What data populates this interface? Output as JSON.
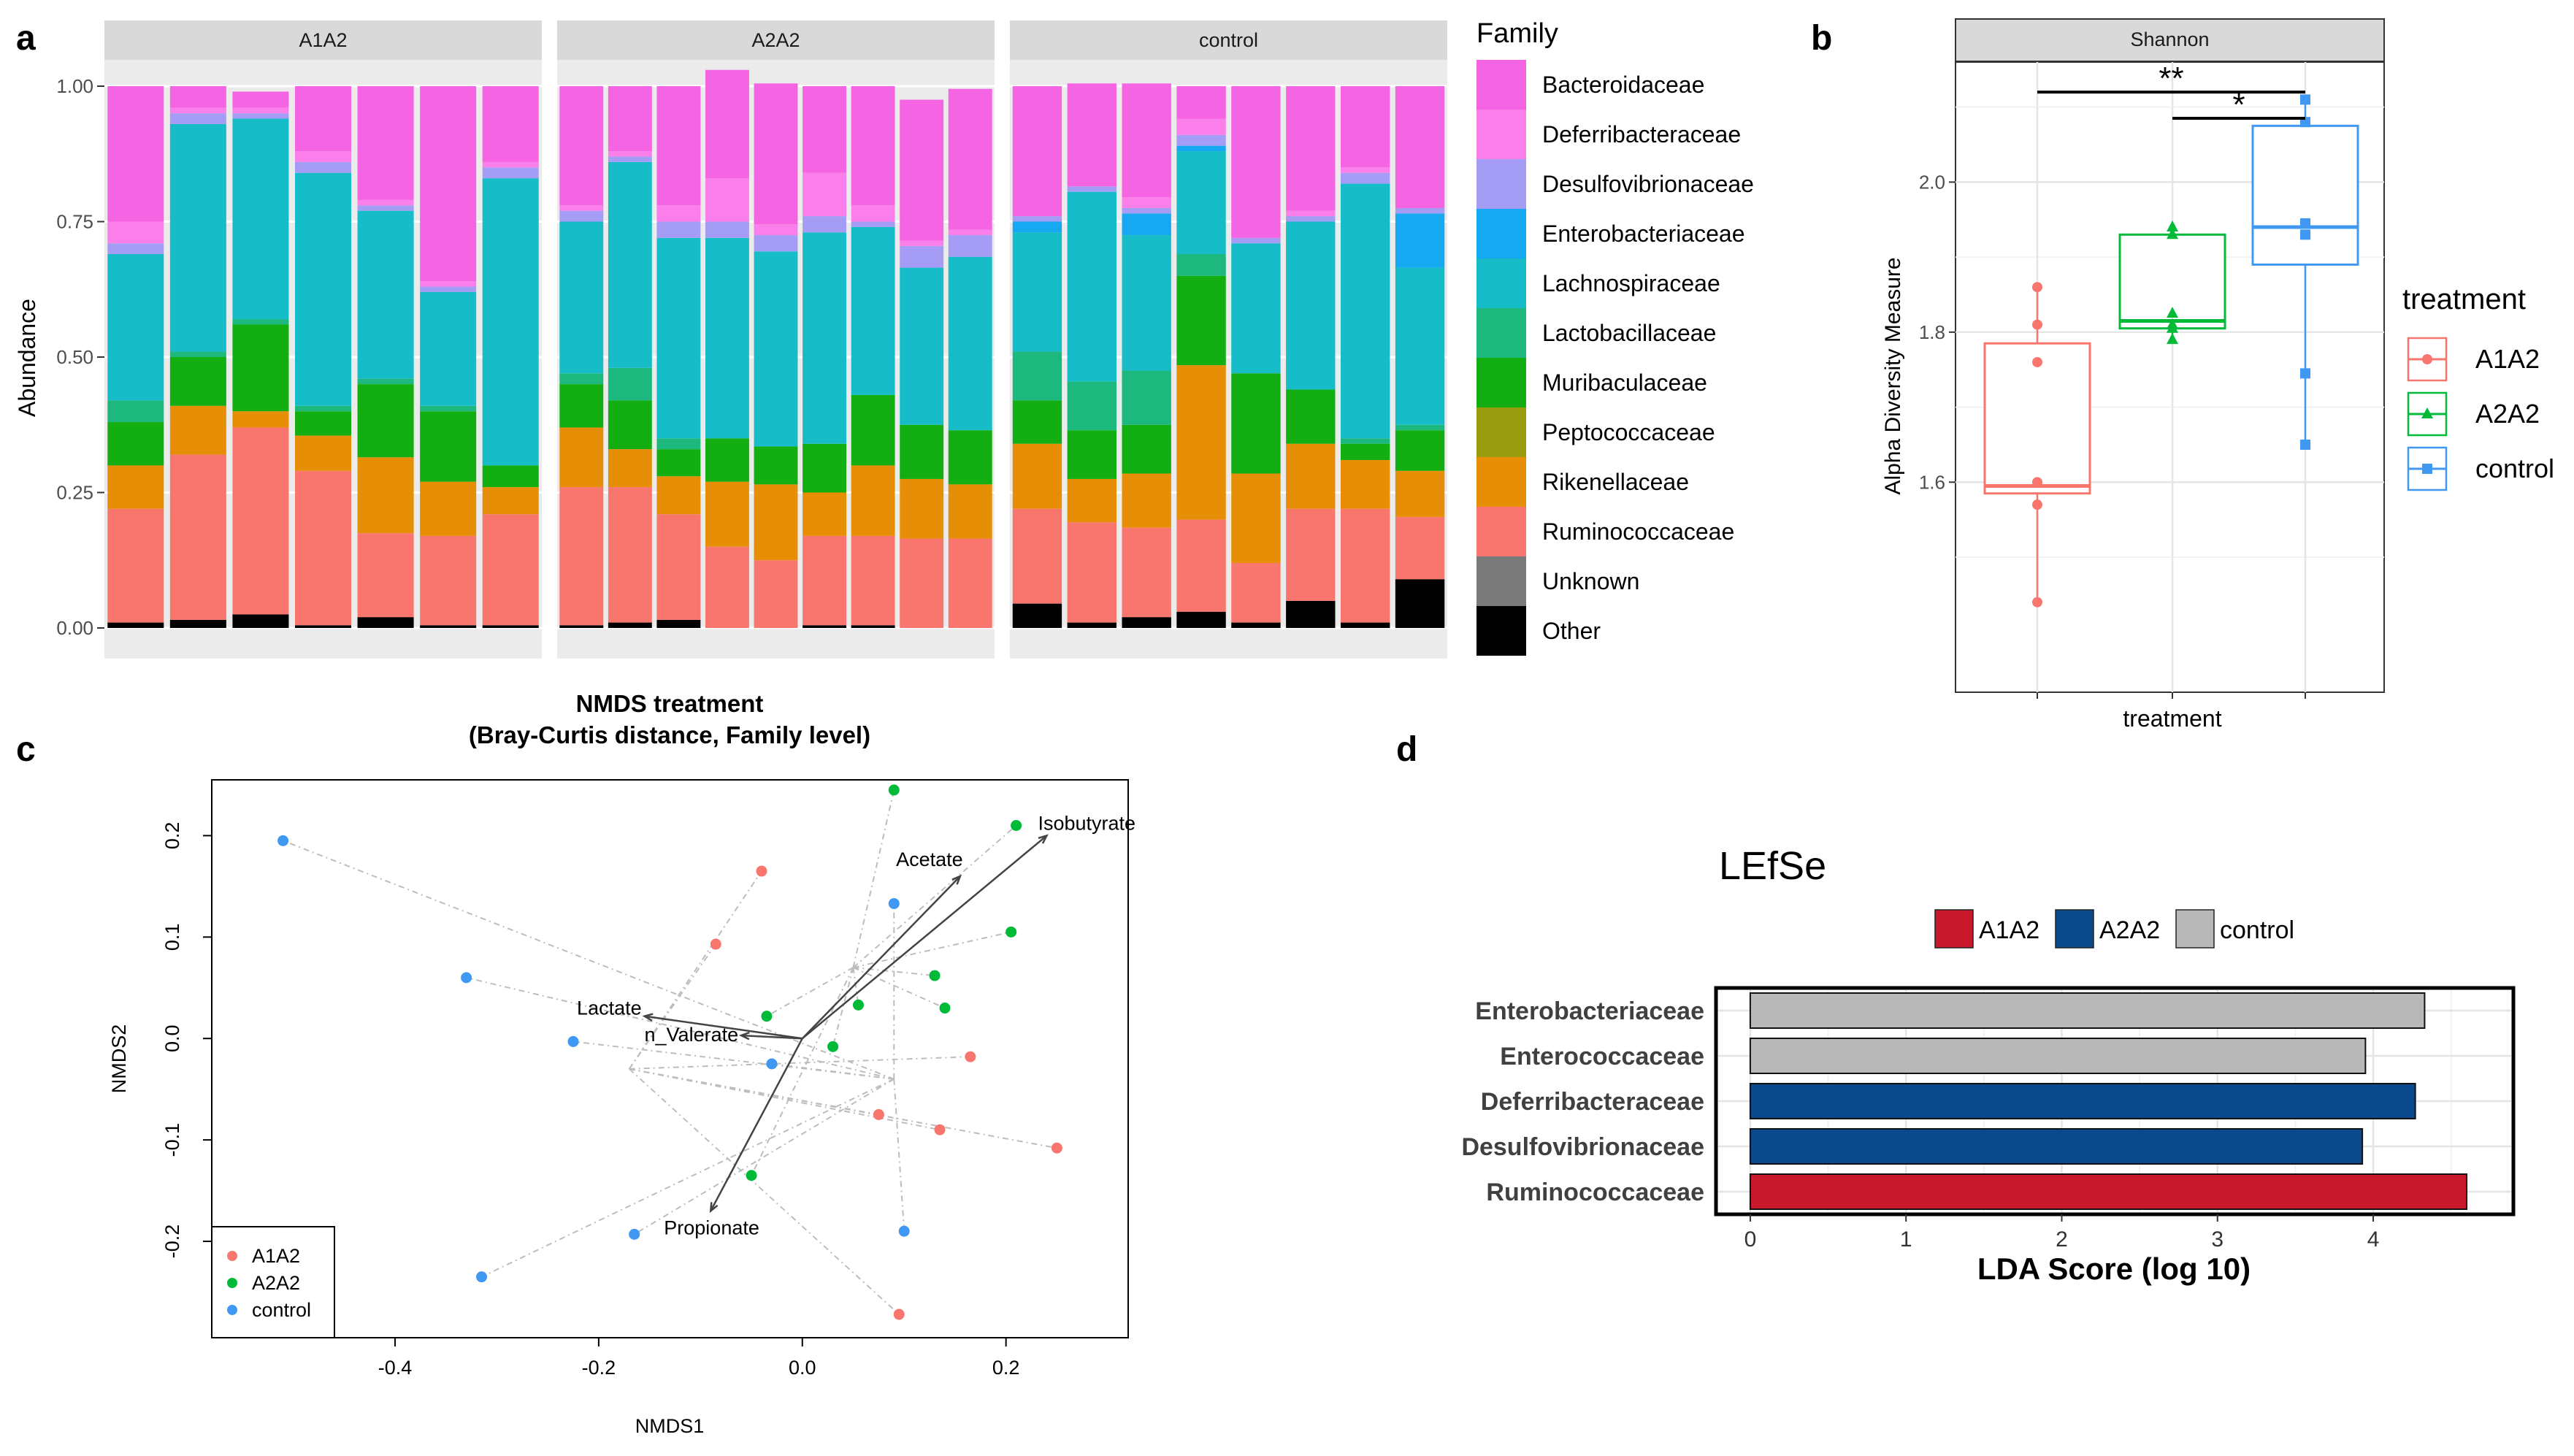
{
  "colors": {
    "Bacteroidaceae": "#F564E3",
    "Deferribacteraceae": "#FB7FEA",
    "Desulfovibrionaceae": "#A59CF5",
    "Enterobacteriaceae": "#16A9F2",
    "Lachnospiraceae": "#16BDC8",
    "Lactobacillaceae": "#1DB87E",
    "Muribaculaceae": "#12AE12",
    "Peptococcaceae": "#9A9D12",
    "Rikenellaceae": "#E78E07",
    "Ruminococcaceae": "#F8766D",
    "Unknown": "#7A7A7A",
    "Other": "#000000",
    "A1A2": "#F8766D",
    "A2A2": "#00BA38",
    "control": "#3F98F2",
    "lefse_A1A2": "#C8192C",
    "lefse_A2A2": "#0A4A8C",
    "lefse_control": "#B8B8B8"
  },
  "panel_labels": {
    "a": "a",
    "b": "b",
    "c": "c",
    "d": "d"
  },
  "chart_data": [
    {
      "id": "a",
      "type": "bar",
      "stacked": true,
      "ylabel": "Abundance",
      "ylim": [
        0,
        1
      ],
      "yticks": [
        0,
        0.25,
        0.5,
        0.75,
        1
      ],
      "ytick_labels": [
        "0.00",
        "0.25",
        "0.50",
        "0.75",
        "1.00"
      ],
      "legend_title": "Family",
      "legend_position": "right",
      "families": [
        "Other",
        "Unknown",
        "Ruminococcaceae",
        "Rikenellaceae",
        "Peptococcaceae",
        "Muribaculaceae",
        "Lactobacillaceae",
        "Lachnospiraceae",
        "Enterobacteriaceae",
        "Desulfovibrionaceae",
        "Deferribacteraceae",
        "Bacteroidaceae"
      ],
      "legend_order": [
        "Bacteroidaceae",
        "Deferribacteraceae",
        "Desulfovibrionaceae",
        "Enterobacteriaceae",
        "Lachnospiraceae",
        "Lactobacillaceae",
        "Muribaculaceae",
        "Peptococcaceae",
        "Rikenellaceae",
        "Ruminococcaceae",
        "Unknown",
        "Other"
      ],
      "facets": [
        {
          "name": "A1A2",
          "samples": [
            [
              0.01,
              0.0,
              0.21,
              0.08,
              0.0,
              0.08,
              0.04,
              0.27,
              0.0,
              0.02,
              0.04,
              0.25
            ],
            [
              0.015,
              0.0,
              0.305,
              0.09,
              0.0,
              0.09,
              0.01,
              0.42,
              0.0,
              0.02,
              0.01,
              0.04
            ],
            [
              0.025,
              0.0,
              0.345,
              0.03,
              0.0,
              0.16,
              0.01,
              0.37,
              0.0,
              0.01,
              0.01,
              0.03
            ],
            [
              0.005,
              0.0,
              0.285,
              0.065,
              0.0,
              0.045,
              0.01,
              0.43,
              0.0,
              0.02,
              0.02,
              0.12
            ],
            [
              0.02,
              0.0,
              0.155,
              0.14,
              0.0,
              0.135,
              0.01,
              0.31,
              0.0,
              0.01,
              0.01,
              0.21
            ],
            [
              0.005,
              0.0,
              0.165,
              0.1,
              0.0,
              0.13,
              0.01,
              0.21,
              0.0,
              0.01,
              0.01,
              0.36
            ],
            [
              0.005,
              0.0,
              0.205,
              0.05,
              0.0,
              0.04,
              0.0,
              0.53,
              0.0,
              0.02,
              0.01,
              0.14
            ]
          ]
        },
        {
          "name": "A2A2",
          "samples": [
            [
              0.005,
              0.0,
              0.255,
              0.11,
              0.0,
              0.08,
              0.02,
              0.28,
              0.0,
              0.02,
              0.01,
              0.22
            ],
            [
              0.01,
              0.0,
              0.25,
              0.07,
              0.0,
              0.09,
              0.06,
              0.38,
              0.0,
              0.01,
              0.01,
              0.12
            ],
            [
              0.015,
              0.0,
              0.195,
              0.07,
              0.0,
              0.05,
              0.02,
              0.37,
              0.0,
              0.03,
              0.03,
              0.22
            ],
            [
              0.0,
              0.0,
              0.15,
              0.12,
              0.0,
              0.08,
              0.0,
              0.37,
              0.0,
              0.03,
              0.08,
              0.2
            ],
            [
              0.0,
              0.0,
              0.125,
              0.14,
              0.0,
              0.07,
              0.0,
              0.36,
              0.0,
              0.03,
              0.02,
              0.26
            ],
            [
              0.005,
              0.0,
              0.165,
              0.08,
              0.0,
              0.09,
              0.0,
              0.39,
              0.0,
              0.03,
              0.08,
              0.16
            ],
            [
              0.005,
              0.0,
              0.165,
              0.13,
              0.0,
              0.13,
              0.0,
              0.31,
              0.0,
              0.01,
              0.03,
              0.22
            ],
            [
              0.0,
              0.0,
              0.165,
              0.11,
              0.0,
              0.1,
              0.0,
              0.29,
              0.0,
              0.04,
              0.01,
              0.26
            ],
            [
              0.0,
              0.0,
              0.165,
              0.1,
              0.0,
              0.1,
              0.0,
              0.32,
              0.0,
              0.04,
              0.01,
              0.26
            ]
          ]
        },
        {
          "name": "control",
          "samples": [
            [
              0.045,
              0.0,
              0.175,
              0.12,
              0.0,
              0.08,
              0.09,
              0.22,
              0.02,
              0.01,
              0.0,
              0.24
            ],
            [
              0.01,
              0.0,
              0.185,
              0.08,
              0.0,
              0.09,
              0.09,
              0.35,
              0.0,
              0.01,
              0.0,
              0.19
            ],
            [
              0.02,
              0.0,
              0.165,
              0.1,
              0.0,
              0.09,
              0.1,
              0.25,
              0.04,
              0.01,
              0.02,
              0.21
            ],
            [
              0.03,
              0.0,
              0.17,
              0.285,
              0.0,
              0.165,
              0.04,
              0.19,
              0.01,
              0.02,
              0.03,
              0.06
            ],
            [
              0.01,
              0.0,
              0.11,
              0.165,
              0.0,
              0.185,
              0.0,
              0.24,
              0.0,
              0.01,
              0.0,
              0.28
            ],
            [
              0.05,
              0.0,
              0.17,
              0.12,
              0.0,
              0.1,
              0.0,
              0.31,
              0.0,
              0.01,
              0.01,
              0.23
            ],
            [
              0.01,
              0.0,
              0.21,
              0.09,
              0.0,
              0.03,
              0.01,
              0.47,
              0.0,
              0.02,
              0.01,
              0.15
            ],
            [
              0.09,
              0.0,
              0.115,
              0.085,
              0.0,
              0.075,
              0.01,
              0.29,
              0.1,
              0.01,
              0.0,
              0.225
            ]
          ]
        }
      ]
    },
    {
      "id": "b",
      "type": "box",
      "facet_label": "Shannon",
      "ylabel": "Alpha Diversity Measure",
      "xlabel": "treatment",
      "ylim": [
        1.32,
        2.16
      ],
      "yticks": [
        1.6,
        1.8,
        2.0
      ],
      "ytick_labels": [
        "1.6",
        "1.8",
        "2.0"
      ],
      "legend_title": "treatment",
      "legend_position": "right",
      "groups": [
        {
          "name": "A1A2",
          "q1": 1.585,
          "median": 1.595,
          "q3": 1.785,
          "min": 1.44,
          "max": 1.86,
          "points": [
            1.44,
            1.57,
            1.6,
            1.76,
            1.81,
            1.86
          ]
        },
        {
          "name": "A2A2",
          "q1": 1.805,
          "median": 1.815,
          "q3": 1.93,
          "min": 1.79,
          "max": 1.94,
          "points": [
            1.79,
            1.805,
            1.81,
            1.825,
            1.93,
            1.94
          ]
        },
        {
          "name": "control",
          "q1": 1.89,
          "median": 1.94,
          "q3": 2.075,
          "min": 1.65,
          "max": 2.11,
          "points": [
            1.65,
            1.745,
            1.93,
            1.945,
            2.08,
            2.11
          ]
        }
      ],
      "significance": [
        {
          "from": "A1A2",
          "to": "control",
          "label": "**",
          "y": 2.12
        },
        {
          "from": "A2A2",
          "to": "control",
          "label": "*",
          "y": 2.085
        }
      ]
    },
    {
      "id": "c",
      "type": "scatter",
      "title": "NMDS treatment",
      "subtitle": "(Bray-Curtis distance, Family level)",
      "xlabel": "NMDS1",
      "ylabel": "NMDS2",
      "xlim": [
        -0.58,
        0.32
      ],
      "ylim": [
        -0.295,
        0.255
      ],
      "xticks": [
        -0.4,
        -0.2,
        0.0,
        0.2
      ],
      "xtick_labels": [
        "-0.4",
        "-0.2",
        "0.0",
        "0.2"
      ],
      "yticks": [
        -0.2,
        -0.1,
        0.0,
        0.1,
        0.2
      ],
      "ytick_labels": [
        "-0.2",
        "-0.1",
        "0.0",
        "0.1",
        "0.2"
      ],
      "legend_position": "bottom-left",
      "centroid": [
        0.0,
        0.0
      ],
      "spider_centers": [
        [
          -0.17,
          -0.03
        ],
        [
          0.05,
          0.07
        ],
        [
          0.09,
          -0.04
        ]
      ],
      "series": [
        {
          "name": "A1A2",
          "points": [
            [
              -0.04,
              0.165
            ],
            [
              -0.085,
              0.093
            ],
            [
              0.165,
              -0.018
            ],
            [
              0.075,
              -0.075
            ],
            [
              0.135,
              -0.09
            ],
            [
              0.25,
              -0.108
            ],
            [
              0.095,
              -0.272
            ]
          ]
        },
        {
          "name": "A2A2",
          "points": [
            [
              0.09,
              0.245
            ],
            [
              0.21,
              0.21
            ],
            [
              0.205,
              0.105
            ],
            [
              0.13,
              0.062
            ],
            [
              0.14,
              0.03
            ],
            [
              0.055,
              0.033
            ],
            [
              -0.035,
              0.022
            ],
            [
              0.03,
              -0.008
            ],
            [
              -0.05,
              -0.135
            ]
          ]
        },
        {
          "name": "control",
          "points": [
            [
              -0.51,
              0.195
            ],
            [
              -0.33,
              0.06
            ],
            [
              -0.225,
              -0.003
            ],
            [
              0.09,
              0.133
            ],
            [
              -0.03,
              -0.025
            ],
            [
              -0.165,
              -0.193
            ],
            [
              -0.315,
              -0.235
            ],
            [
              0.1,
              -0.19
            ]
          ]
        }
      ],
      "vectors": [
        {
          "name": "Isobutyrate",
          "x": 0.24,
          "y": 0.2
        },
        {
          "name": "Acetate",
          "x": 0.155,
          "y": 0.16
        },
        {
          "name": "Lactate",
          "x": -0.155,
          "y": 0.022
        },
        {
          "name": "n_Valerate",
          "x": -0.06,
          "y": 0.003
        },
        {
          "name": "Propionate",
          "x": -0.09,
          "y": -0.17
        }
      ]
    },
    {
      "id": "d",
      "type": "bar",
      "orientation": "horizontal",
      "title": "LEfSe",
      "xlabel": "LDA Score (log 10)",
      "xlim": [
        -0.22,
        4.9
      ],
      "xticks": [
        0,
        1,
        2,
        3,
        4
      ],
      "xtick_labels": [
        "0",
        "1",
        "2",
        "3",
        "4"
      ],
      "legend_position": "top",
      "legend": [
        "A1A2",
        "A2A2",
        "control"
      ],
      "categories": [
        "Enterobacteriaceae",
        "Enterococcaceae",
        "Deferribacteraceae",
        "Desulfovibrionaceae",
        "Ruminococcaceae"
      ],
      "values": [
        4.33,
        3.95,
        4.27,
        3.93,
        4.6
      ],
      "groups": [
        "control",
        "control",
        "A2A2",
        "A2A2",
        "A1A2"
      ]
    }
  ]
}
